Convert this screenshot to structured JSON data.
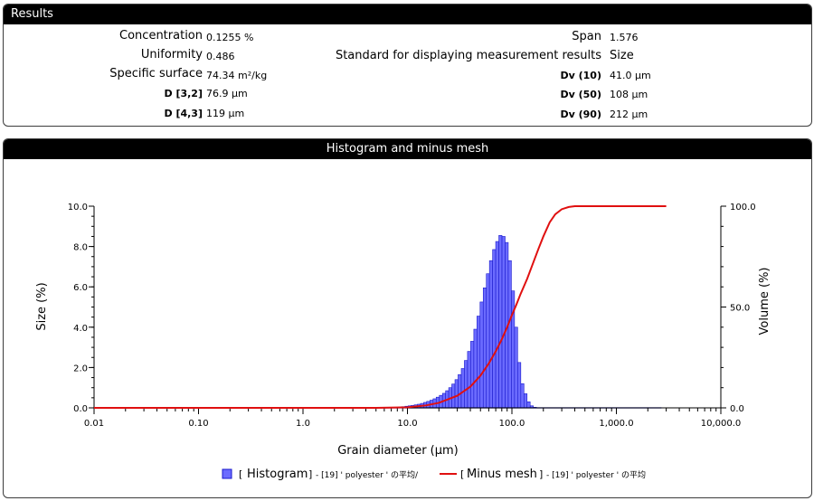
{
  "results": {
    "title": "Results",
    "left": [
      {
        "label": "Concentration",
        "value": "0.1255 %"
      },
      {
        "label": "Uniformity",
        "value": "0.486"
      },
      {
        "label": "Specific surface",
        "value": "74.34 m²/kg"
      },
      {
        "label": "D [3,2]",
        "value": "76.9 μm"
      },
      {
        "label": "D [4,3]",
        "value": "119 μm"
      }
    ],
    "right": [
      {
        "label": "Span",
        "value": "1.576"
      },
      {
        "label": "Standard for displaying measurement results",
        "value": "Size"
      },
      {
        "label": "Dv (10)",
        "value": "41.0 μm"
      },
      {
        "label": "Dv (50)",
        "value": "108 μm"
      },
      {
        "label": "Dv (90)",
        "value": "212 μm"
      }
    ]
  },
  "histogram_panel": {
    "title": "Histogram and minus mesh"
  },
  "chart_data": {
    "type": "bar",
    "xlabel": "Grain diameter (μm)",
    "ylabel": "Size (%)",
    "y2label": "Volume (%)",
    "xscale": "log",
    "xlim": [
      0.01,
      10000
    ],
    "ylim": [
      0,
      10
    ],
    "y2lim": [
      0,
      100
    ],
    "xticks": [
      "0.01",
      "0.10",
      "1.0",
      "10.0",
      "100.0",
      "1,000.0",
      "10,000.0"
    ],
    "yticks": [
      "0.0",
      "2.0",
      "4.0",
      "6.0",
      "8.0",
      "10.0"
    ],
    "y2ticks": [
      "0.0",
      "50.0",
      "100.0"
    ],
    "colors": {
      "histogram": "#6b6bff",
      "histogram_edge": "#1a1acc",
      "minus_mesh": "#e01010"
    },
    "legend": [
      {
        "bracket_open": "[",
        "name": "Histogram",
        "bracket_close": "]",
        "suffix": "- [19] ' polyester ' の平均/"
      },
      {
        "bracket_open": "[",
        "name": "Minus mesh",
        "bracket_close": "]",
        "suffix": "- [19] ' polyester ' の平均"
      }
    ],
    "series": [
      {
        "name": "Histogram",
        "type": "bar",
        "bin_width_log10": 0.03,
        "x": [
          8.5,
          9.1,
          9.8,
          10.5,
          11.2,
          12.0,
          12.9,
          13.8,
          14.8,
          15.8,
          17.0,
          18.2,
          19.5,
          20.9,
          22.4,
          24.0,
          25.7,
          27.5,
          29.5,
          31.6,
          33.9,
          36.3,
          38.9,
          41.7,
          44.7,
          47.9,
          51.3,
          55.0,
          58.9,
          63.1,
          67.6,
          72.4,
          77.6,
          83.2,
          89.1,
          95.5,
          102.3,
          109.6,
          117.5,
          125.9,
          134.9,
          144.5,
          154.9,
          166.0,
          177.8,
          190.5,
          204.2,
          218.8,
          234.4,
          251.2,
          269.2,
          288.4,
          309.0,
          331.1,
          354.8,
          380.2
        ],
        "values": [
          0.04,
          0.06,
          0.08,
          0.1,
          0.12,
          0.15,
          0.18,
          0.22,
          0.27,
          0.32,
          0.38,
          0.45,
          0.53,
          0.62,
          0.72,
          0.85,
          1.0,
          1.18,
          1.4,
          1.65,
          1.95,
          2.35,
          2.8,
          3.3,
          3.9,
          4.55,
          5.25,
          5.95,
          6.65,
          7.3,
          7.85,
          8.25,
          8.55,
          8.5,
          8.2,
          7.3,
          5.8,
          4.0,
          2.25,
          1.2,
          0.7,
          0.3,
          0.1,
          0.03,
          0.01,
          0,
          0,
          0,
          0,
          0,
          0,
          0,
          0,
          0,
          0,
          0
        ]
      },
      {
        "name": "Minus mesh",
        "type": "line",
        "axis": "y2",
        "x": [
          0.01,
          1.0,
          5.0,
          10.0,
          15.0,
          20.0,
          30.0,
          40.0,
          50.0,
          60.0,
          70.0,
          80.0,
          90.0,
          100.0,
          110.0,
          120.0,
          140.0,
          160.0,
          180.0,
          200.0,
          230.0,
          260.0,
          300.0,
          350.0,
          400.0,
          500.0,
          1000.0,
          3000.0
        ],
        "values": [
          0,
          0,
          0,
          0.3,
          1.2,
          2.5,
          6,
          10.5,
          16,
          22,
          28,
          34,
          40,
          46,
          51,
          56,
          64,
          72,
          79,
          85,
          92,
          96,
          98.5,
          99.6,
          100,
          100,
          100,
          100
        ]
      }
    ]
  }
}
